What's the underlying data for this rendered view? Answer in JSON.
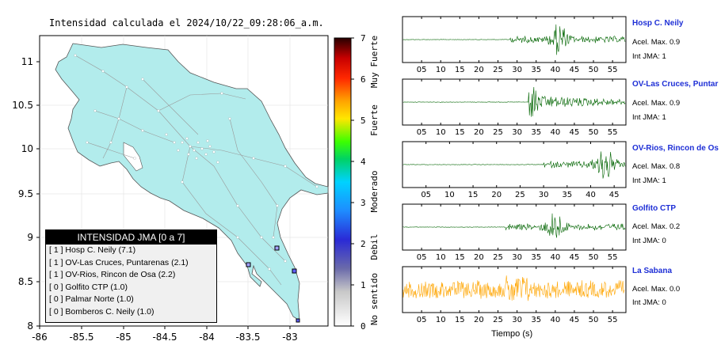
{
  "title": "Intensidad calculada el 2024/10/22_09:28:06_a.m.",
  "map": {
    "lat_ticks": [
      "11",
      "10.5",
      "10",
      "9.5",
      "9",
      "8.5",
      "8"
    ],
    "lon_ticks": [
      "-86",
      "-85.5",
      "-85",
      "-84.5",
      "-84",
      "-83.5",
      "-83"
    ],
    "land_color": "#b2ecec",
    "sea_color": "#ffffff"
  },
  "colorbar": {
    "ticks": [
      "7",
      "6",
      "5",
      "4",
      "3",
      "2",
      "1",
      "0"
    ],
    "labels": [
      "Muy Fuerte",
      "Fuerte",
      "Moderado",
      "Debil",
      "No sentido"
    ]
  },
  "legend": {
    "title": "INTENSIDAD JMA [0 a 7]",
    "rows": [
      "[ 1 ]  Hosp C. Neily (7.1)",
      "[ 1 ]  OV-Las Cruces, Puntarenas (2.1)",
      "[ 1 ]  OV-Rios, Rincon de Osa (2.2)",
      "[ 0 ]  Golfito CTP (1.0)",
      "[ 0 ]  Palmar Norte (1.0)",
      "[ 0 ]  Bomberos C. Neily (1.0)"
    ]
  },
  "stations": [
    {
      "name": "Hosp C. Neily",
      "acel": "Acel. Max. 0.9",
      "jma": "Int JMA: 1",
      "color": "#006400",
      "ticks": [
        "05",
        "10",
        "15",
        "20",
        "25",
        "30",
        "35",
        "40",
        "45",
        "50",
        "55"
      ],
      "start": 28,
      "burst": 41
    },
    {
      "name": "OV-Las Cruces, Puntar",
      "acel": "Acel. Max. 0.9",
      "jma": "Int JMA: 1",
      "color": "#006400",
      "ticks": [
        "05",
        "10",
        "15",
        "20",
        "25",
        "30",
        "35",
        "40",
        "45",
        "50",
        "55"
      ],
      "start": 33,
      "burst": 34
    },
    {
      "name": "OV-Rios, Rincon de Os",
      "acel": "Acel. Max. 0.8",
      "jma": "Int JMA: 1",
      "color": "#006400",
      "ticks": [
        "05",
        "10",
        "15",
        "20",
        "25",
        "30",
        "35",
        "40",
        "45"
      ],
      "start": 30,
      "burst": 43
    },
    {
      "name": "Golfito CTP",
      "acel": "Acel. Max. 0.2",
      "jma": "Int JMA: 0",
      "color": "#006400",
      "ticks": [
        "05",
        "10",
        "15",
        "20",
        "25",
        "30",
        "35",
        "40",
        "45",
        "50",
        "55"
      ],
      "start": 27,
      "burst": 40
    },
    {
      "name": "La Sabana",
      "acel": "Acel. Max. 0.0",
      "jma": "Int JMA: 0",
      "color": "#ffa500",
      "ticks": [
        "05",
        "10",
        "15",
        "20",
        "25",
        "30",
        "35",
        "40",
        "45",
        "50",
        "55"
      ],
      "start": 0,
      "burst": 30
    }
  ],
  "xaxis_label": "Tiempo (s)"
}
